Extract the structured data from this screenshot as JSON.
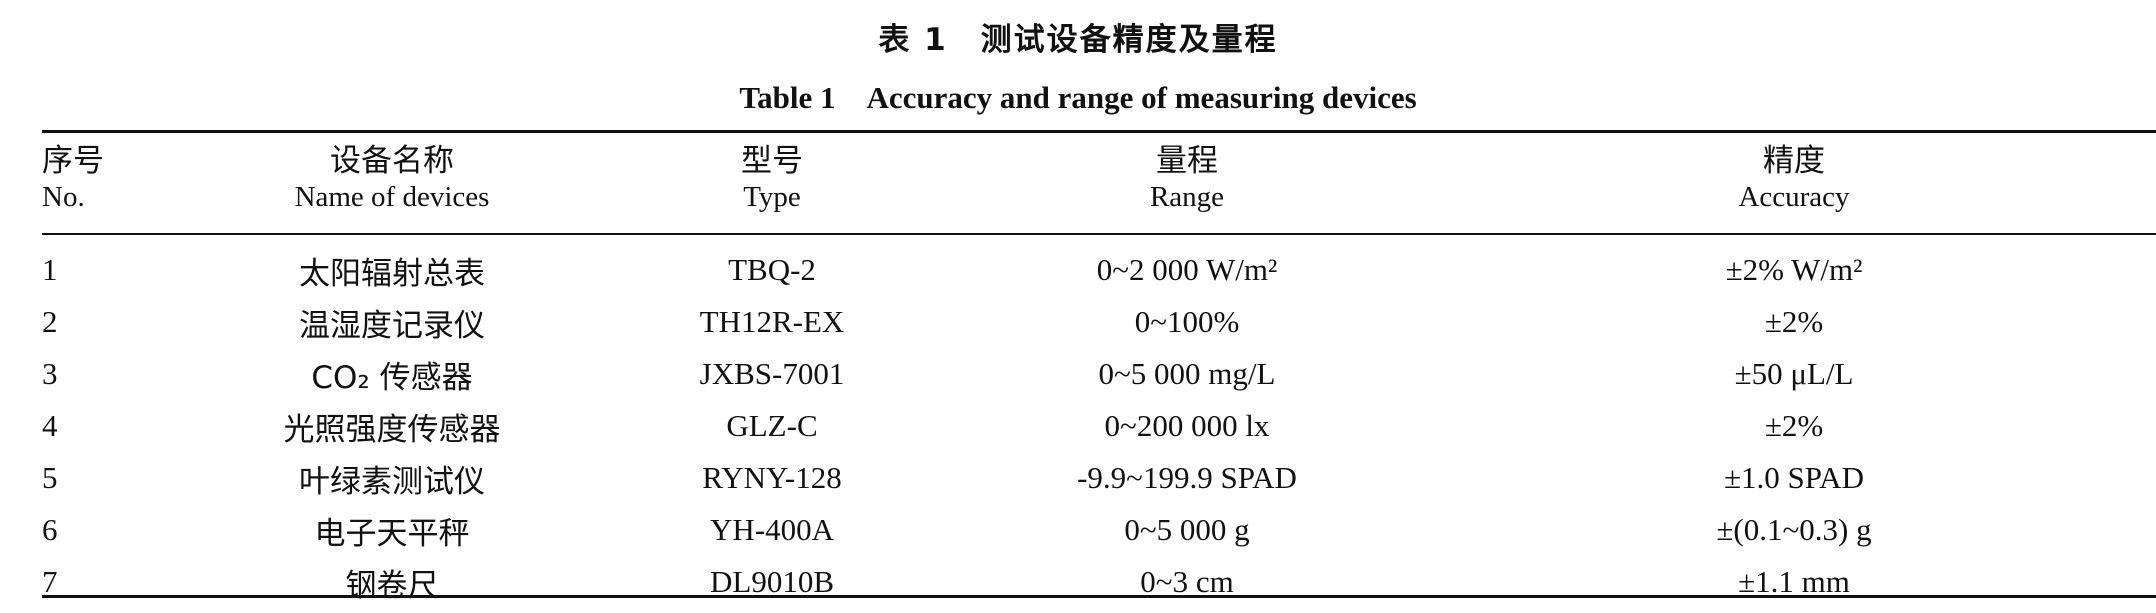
{
  "caption": {
    "zh": "表 1　测试设备精度及量程",
    "en": "Table 1　Accuracy and range of measuring devices"
  },
  "headers": [
    {
      "zh": "序号",
      "en": "No."
    },
    {
      "zh": "设备名称",
      "en": "Name of devices"
    },
    {
      "zh": "型号",
      "en": "Type"
    },
    {
      "zh": "量程",
      "en": "Range"
    },
    {
      "zh": "精度",
      "en": "Accuracy"
    }
  ],
  "rows": [
    {
      "no": "1",
      "name": "太阳辐射总表",
      "type": "TBQ-2",
      "range": "0~2 000 W/m²",
      "accuracy": "±2% W/m²"
    },
    {
      "no": "2",
      "name": "温湿度记录仪",
      "type": "TH12R-EX",
      "range": "0~100%",
      "accuracy": "±2%"
    },
    {
      "no": "3",
      "name": "CO₂ 传感器",
      "type": "JXBS-7001",
      "range": "0~5 000 mg/L",
      "accuracy": "±50 μL/L"
    },
    {
      "no": "4",
      "name": "光照强度传感器",
      "type": "GLZ-C",
      "range": "0~200 000 lx",
      "accuracy": "±2%"
    },
    {
      "no": "5",
      "name": "叶绿素测试仪",
      "type": "RYNY-128",
      "range": "-9.9~199.9 SPAD",
      "accuracy": "±1.0 SPAD"
    },
    {
      "no": "6",
      "name": "电子天平秤",
      "type": "YH-400A",
      "range": "0~5 000 g",
      "accuracy": "±(0.1~0.3) g"
    },
    {
      "no": "7",
      "name": "钢卷尺",
      "type": "DL9010B",
      "range": "0~3 cm",
      "accuracy": "±1.1 mm"
    }
  ]
}
